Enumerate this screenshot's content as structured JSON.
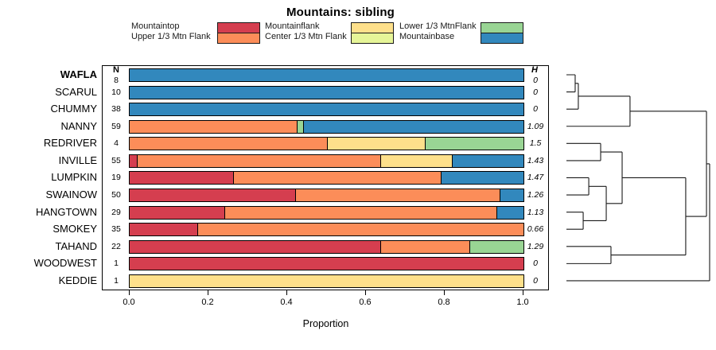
{
  "chart_data": {
    "type": "bar",
    "subtype": "horizontal-stacked-proportion-with-dendrogram",
    "title": "Mountains: sibling",
    "xlabel": "Proportion",
    "xlim": [
      0,
      1
    ],
    "xticks": [
      "0.0",
      "0.2",
      "0.4",
      "0.6",
      "0.8",
      "1.0"
    ],
    "columns": {
      "n_header": "N",
      "h_header": "H"
    },
    "legend_position": "top",
    "grid": false,
    "legend": [
      {
        "name": "Mountaintop",
        "color": "#D53E4F"
      },
      {
        "name": "Upper 1/3 Mtn Flank",
        "color": "#FC8D59"
      },
      {
        "name": "Mountainflank",
        "color": "#FEE08B"
      },
      {
        "name": "Center 1/3 Mtn Flank",
        "color": "#E6F598"
      },
      {
        "name": "Lower 1/3 MtnFlank",
        "color": "#99D594"
      },
      {
        "name": "Mountainbase",
        "color": "#3288BD"
      }
    ],
    "rows": [
      {
        "label": "WAFLA",
        "bold": true,
        "n": 8,
        "h": "0",
        "segments": [
          {
            "category": "Mountainbase",
            "proportion": 1.0
          }
        ]
      },
      {
        "label": "SCARUL",
        "bold": false,
        "n": 10,
        "h": "0",
        "segments": [
          {
            "category": "Mountainbase",
            "proportion": 1.0
          }
        ]
      },
      {
        "label": "CHUMMY",
        "bold": false,
        "n": 38,
        "h": "0",
        "segments": [
          {
            "category": "Mountainbase",
            "proportion": 1.0
          }
        ]
      },
      {
        "label": "NANNY",
        "bold": false,
        "n": 59,
        "h": "1.09",
        "segments": [
          {
            "category": "Upper 1/3 Mtn Flank",
            "proportion": 0.424
          },
          {
            "category": "Lower 1/3 MtnFlank",
            "proportion": 0.017
          },
          {
            "category": "Mountainbase",
            "proportion": 0.559
          }
        ]
      },
      {
        "label": "REDRIVER",
        "bold": false,
        "n": 4,
        "h": "1.5",
        "segments": [
          {
            "category": "Upper 1/3 Mtn Flank",
            "proportion": 0.5
          },
          {
            "category": "Mountainflank",
            "proportion": 0.25
          },
          {
            "category": "Lower 1/3 MtnFlank",
            "proportion": 0.25
          }
        ]
      },
      {
        "label": "INVILLE",
        "bold": false,
        "n": 55,
        "h": "1.43",
        "segments": [
          {
            "category": "Mountaintop",
            "proportion": 0.018
          },
          {
            "category": "Upper 1/3 Mtn Flank",
            "proportion": 0.618
          },
          {
            "category": "Mountainflank",
            "proportion": 0.182
          },
          {
            "category": "Mountainbase",
            "proportion": 0.182
          }
        ]
      },
      {
        "label": "LUMPKIN",
        "bold": false,
        "n": 19,
        "h": "1.47",
        "segments": [
          {
            "category": "Mountaintop",
            "proportion": 0.263
          },
          {
            "category": "Upper 1/3 Mtn Flank",
            "proportion": 0.526
          },
          {
            "category": "Mountainbase",
            "proportion": 0.211
          }
        ]
      },
      {
        "label": "SWAINOW",
        "bold": false,
        "n": 50,
        "h": "1.26",
        "segments": [
          {
            "category": "Mountaintop",
            "proportion": 0.42
          },
          {
            "category": "Upper 1/3 Mtn Flank",
            "proportion": 0.52
          },
          {
            "category": "Mountainbase",
            "proportion": 0.06
          }
        ]
      },
      {
        "label": "HANGTOWN",
        "bold": false,
        "n": 29,
        "h": "1.13",
        "segments": [
          {
            "category": "Mountaintop",
            "proportion": 0.241
          },
          {
            "category": "Upper 1/3 Mtn Flank",
            "proportion": 0.69
          },
          {
            "category": "Mountainbase",
            "proportion": 0.069
          }
        ]
      },
      {
        "label": "SMOKEY",
        "bold": false,
        "n": 35,
        "h": "0.66",
        "segments": [
          {
            "category": "Mountaintop",
            "proportion": 0.171
          },
          {
            "category": "Upper 1/3 Mtn Flank",
            "proportion": 0.829
          }
        ]
      },
      {
        "label": "TAHAND",
        "bold": false,
        "n": 22,
        "h": "1.29",
        "segments": [
          {
            "category": "Mountaintop",
            "proportion": 0.636
          },
          {
            "category": "Upper 1/3 Mtn Flank",
            "proportion": 0.227
          },
          {
            "category": "Lower 1/3 MtnFlank",
            "proportion": 0.137
          }
        ]
      },
      {
        "label": "WOODWEST",
        "bold": false,
        "n": 1,
        "h": "0",
        "segments": [
          {
            "category": "Mountaintop",
            "proportion": 1.0
          }
        ]
      },
      {
        "label": "KEDDIE",
        "bold": false,
        "n": 1,
        "h": "0",
        "segments": [
          {
            "category": "Mountainflank",
            "proportion": 1.0
          }
        ]
      }
    ],
    "dendrogram": {
      "leaves": [
        "WAFLA",
        "SCARUL",
        "CHUMMY",
        "NANNY",
        "REDRIVER",
        "INVILLE",
        "LUMPKIN",
        "SWAINOW",
        "HANGTOWN",
        "SMOKEY",
        "TAHAND",
        "WOODWEST",
        "KEDDIE"
      ],
      "merges": [
        {
          "a": "L0",
          "b": "L1",
          "height": 0.061
        },
        {
          "a": "M0",
          "b": "L2",
          "height": 0.083
        },
        {
          "a": "M1",
          "b": "L3",
          "height": 0.444
        },
        {
          "a": "L4",
          "b": "L5",
          "height": 0.239
        },
        {
          "a": "L6",
          "b": "L7",
          "height": 0.156
        },
        {
          "a": "L8",
          "b": "L9",
          "height": 0.117
        },
        {
          "a": "M4",
          "b": "M5",
          "height": 0.278
        },
        {
          "a": "M3",
          "b": "M6",
          "height": 0.389
        },
        {
          "a": "L10",
          "b": "L11",
          "height": 0.311
        },
        {
          "a": "M7",
          "b": "M8",
          "height": 0.833
        },
        {
          "a": "M2",
          "b": "M9",
          "height": 0.978
        },
        {
          "a": "M10",
          "b": "L12",
          "height": 1.0
        }
      ]
    }
  }
}
